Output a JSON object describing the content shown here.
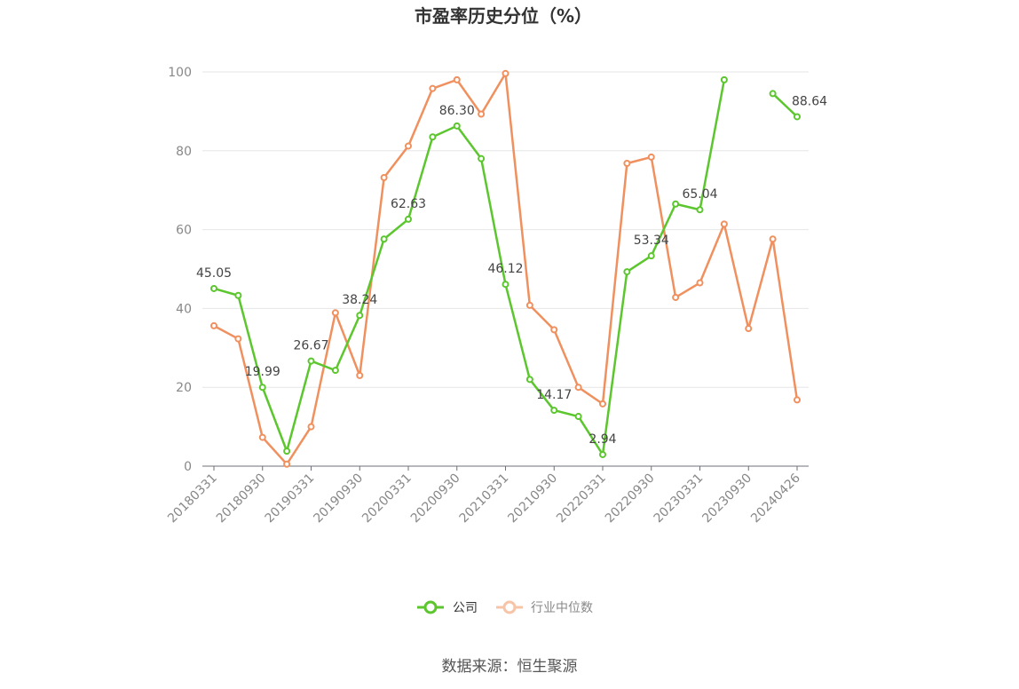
{
  "chart_data": {
    "type": "line",
    "title": "市盈率历史分位（%）",
    "xlabel": "",
    "ylabel": "",
    "ylim": [
      0,
      100
    ],
    "yticks": [
      0,
      20,
      40,
      60,
      80,
      100
    ],
    "grid": true,
    "legend_position": "bottom-center",
    "x": [
      "20180331",
      "20180630",
      "20180930",
      "20181231",
      "20190331",
      "20190630",
      "20190930",
      "20191231",
      "20200331",
      "20200630",
      "20200930",
      "20201231",
      "20210331",
      "20210630",
      "20210930",
      "20211231",
      "20220331",
      "20220630",
      "20220930",
      "20221231",
      "20230331",
      "20230630",
      "20230930",
      "20231231",
      "20240426"
    ],
    "xtick_labels": [
      "20180331",
      "20180930",
      "20190331",
      "20190930",
      "20200331",
      "20200930",
      "20210331",
      "20210930",
      "20220331",
      "20220930",
      "20230331",
      "20230930",
      "20240426"
    ],
    "series": [
      {
        "name": "公司",
        "color": "#5cc62e",
        "values": [
          45.05,
          43.3,
          19.99,
          3.8,
          26.67,
          24.3,
          38.24,
          57.6,
          62.63,
          83.5,
          86.3,
          78.0,
          46.12,
          22.0,
          14.17,
          12.6,
          2.94,
          49.3,
          53.34,
          66.5,
          65.04,
          98.0,
          null,
          94.5,
          88.64
        ],
        "labels": {
          "0": "45.05",
          "2": "19.99",
          "4": "26.67",
          "6": "38.24",
          "8": "62.63",
          "10": "86.30",
          "12": "46.12",
          "14": "14.17",
          "16": "2.94",
          "18": "53.34",
          "20": "65.04",
          "24": "88.64"
        }
      },
      {
        "name": "行业中位数",
        "color": "#f0905e",
        "values": [
          35.6,
          32.3,
          7.3,
          0.5,
          10.0,
          38.9,
          23.0,
          73.2,
          81.2,
          95.8,
          98.0,
          89.3,
          99.6,
          40.8,
          34.6,
          20.0,
          15.8,
          76.8,
          78.4,
          42.8,
          46.5,
          61.4,
          34.9,
          57.6,
          16.8
        ]
      }
    ]
  },
  "legend": {
    "items": [
      {
        "label": "公司",
        "color": "#5cc62e"
      },
      {
        "label": "行业中位数",
        "color": "#f0905e"
      }
    ]
  },
  "source": {
    "text": "数据来源：恒生聚源"
  }
}
